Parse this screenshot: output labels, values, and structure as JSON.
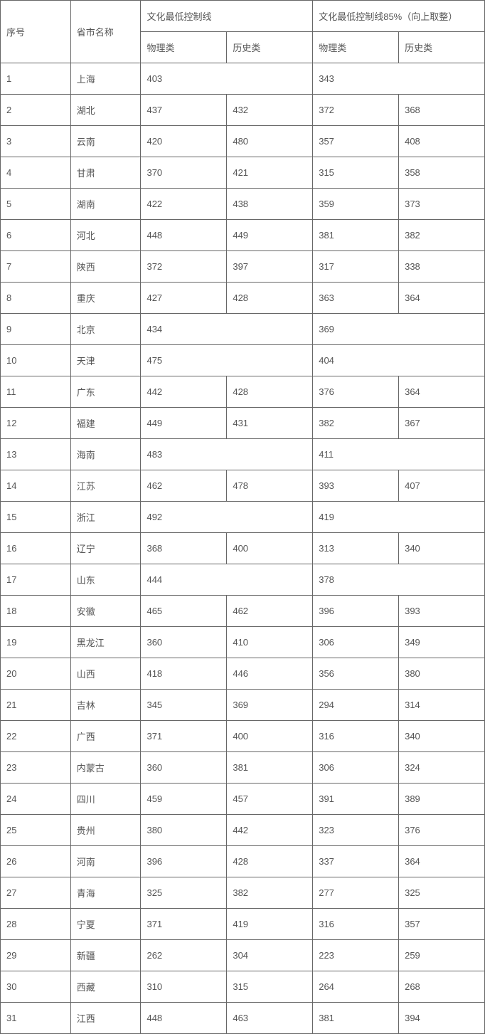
{
  "table": {
    "headers": {
      "seq": "序号",
      "province": "省市名称",
      "group1": "文化最低控制线",
      "group2": "文化最低控制线85%（向上取整）",
      "physics": "物理类",
      "history": "历史类"
    },
    "rows": [
      {
        "seq": "1",
        "prov": "上海",
        "p1": "403",
        "h1": null,
        "p2": "343",
        "h2": null
      },
      {
        "seq": "2",
        "prov": "湖北",
        "p1": "437",
        "h1": "432",
        "p2": "372",
        "h2": "368"
      },
      {
        "seq": "3",
        "prov": "云南",
        "p1": "420",
        "h1": "480",
        "p2": "357",
        "h2": "408"
      },
      {
        "seq": "4",
        "prov": "甘肃",
        "p1": "370",
        "h1": "421",
        "p2": "315",
        "h2": "358"
      },
      {
        "seq": "5",
        "prov": "湖南",
        "p1": "422",
        "h1": "438",
        "p2": "359",
        "h2": "373"
      },
      {
        "seq": "6",
        "prov": "河北",
        "p1": "448",
        "h1": "449",
        "p2": "381",
        "h2": "382"
      },
      {
        "seq": "7",
        "prov": "陕西",
        "p1": "372",
        "h1": "397",
        "p2": "317",
        "h2": "338"
      },
      {
        "seq": "8",
        "prov": "重庆",
        "p1": "427",
        "h1": "428",
        "p2": "363",
        "h2": "364"
      },
      {
        "seq": "9",
        "prov": "北京",
        "p1": "434",
        "h1": null,
        "p2": "369",
        "h2": null
      },
      {
        "seq": "10",
        "prov": "天津",
        "p1": "475",
        "h1": null,
        "p2": "404",
        "h2": null
      },
      {
        "seq": "11",
        "prov": "广东",
        "p1": "442",
        "h1": "428",
        "p2": "376",
        "h2": "364"
      },
      {
        "seq": "12",
        "prov": "福建",
        "p1": "449",
        "h1": "431",
        "p2": "382",
        "h2": "367"
      },
      {
        "seq": "13",
        "prov": "海南",
        "p1": "483",
        "h1": null,
        "p2": "411",
        "h2": null
      },
      {
        "seq": "14",
        "prov": "江苏",
        "p1": "462",
        "h1": "478",
        "p2": "393",
        "h2": "407"
      },
      {
        "seq": "15",
        "prov": "浙江",
        "p1": "492",
        "h1": null,
        "p2": "419",
        "h2": null
      },
      {
        "seq": "16",
        "prov": "辽宁",
        "p1": "368",
        "h1": "400",
        "p2": "313",
        "h2": "340"
      },
      {
        "seq": "17",
        "prov": "山东",
        "p1": "444",
        "h1": null,
        "p2": "378",
        "h2": null
      },
      {
        "seq": "18",
        "prov": "安徽",
        "p1": "465",
        "h1": "462",
        "p2": "396",
        "h2": "393"
      },
      {
        "seq": "19",
        "prov": "黑龙江",
        "p1": "360",
        "h1": "410",
        "p2": "306",
        "h2": "349"
      },
      {
        "seq": "20",
        "prov": "山西",
        "p1": "418",
        "h1": "446",
        "p2": "356",
        "h2": "380"
      },
      {
        "seq": "21",
        "prov": "吉林",
        "p1": "345",
        "h1": "369",
        "p2": "294",
        "h2": "314"
      },
      {
        "seq": "22",
        "prov": "广西",
        "p1": "371",
        "h1": "400",
        "p2": "316",
        "h2": "340"
      },
      {
        "seq": "23",
        "prov": "内蒙古",
        "p1": "360",
        "h1": "381",
        "p2": "306",
        "h2": "324"
      },
      {
        "seq": "24",
        "prov": "四川",
        "p1": "459",
        "h1": "457",
        "p2": "391",
        "h2": "389"
      },
      {
        "seq": "25",
        "prov": "贵州",
        "p1": "380",
        "h1": "442",
        "p2": "323",
        "h2": "376"
      },
      {
        "seq": "26",
        "prov": "河南",
        "p1": "396",
        "h1": "428",
        "p2": "337",
        "h2": "364"
      },
      {
        "seq": "27",
        "prov": "青海",
        "p1": "325",
        "h1": "382",
        "p2": "277",
        "h2": "325"
      },
      {
        "seq": "28",
        "prov": "宁夏",
        "p1": "371",
        "h1": "419",
        "p2": "316",
        "h2": "357"
      },
      {
        "seq": "29",
        "prov": "新疆",
        "p1": "262",
        "h1": "304",
        "p2": "223",
        "h2": "259"
      },
      {
        "seq": "30",
        "prov": "西藏",
        "p1": "310",
        "h1": "315",
        "p2": "264",
        "h2": "268"
      },
      {
        "seq": "31",
        "prov": "江西",
        "p1": "448",
        "h1": "463",
        "p2": "381",
        "h2": "394"
      }
    ]
  }
}
